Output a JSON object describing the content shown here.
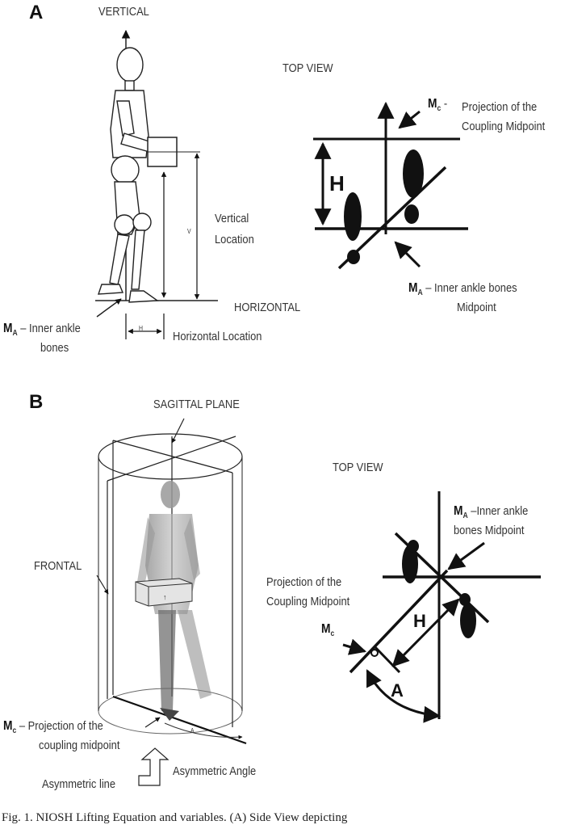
{
  "panel_a": {
    "letter": "A",
    "vertical": "VERTICAL",
    "top_view": "TOP VIEW",
    "mc_sym": "M",
    "mc_sub": "c",
    "mc_text_1": "Projection of the",
    "mc_text_2": "Coupling Midpoint",
    "h_label": "H",
    "vertical_location_1": "Vertical",
    "vertical_location_2": "Location",
    "v_label": "V",
    "horizontal": "HORIZONTAL",
    "ma_sym": "M",
    "ma_sub": "A",
    "ma_right_1": " – Inner ankle bones",
    "ma_right_2": "Midpoint",
    "ma_left_1": " – Inner ankle",
    "ma_left_2": "bones",
    "h_small": "H",
    "horizontal_location": "Horizontal Location"
  },
  "panel_b": {
    "letter": "B",
    "sagittal": "SAGITTAL PLANE",
    "top_view": "TOP VIEW",
    "ma_sym": "M",
    "ma_sub": "A",
    "ma_text_1": " –Inner ankle",
    "ma_text_2": "bones Midpoint",
    "frontal": "FRONTAL",
    "proj_1": "Projection of the",
    "proj_2": "Coupling Midpoint",
    "mc_sym": "M",
    "mc_sub": "c",
    "h_label": "H",
    "a_label": "A",
    "mc_left_sym": "M",
    "mc_left_sub": "c",
    "mc_left_1": " – Projection of the",
    "mc_left_2": "coupling midpoint",
    "asym_line": "Asymmetric line",
    "asym_angle": "Asymmetric Angle",
    "a_small": "A"
  },
  "caption": "Fig. 1. NIOSH Lifting Equation and variables. (A) Side View depicting"
}
